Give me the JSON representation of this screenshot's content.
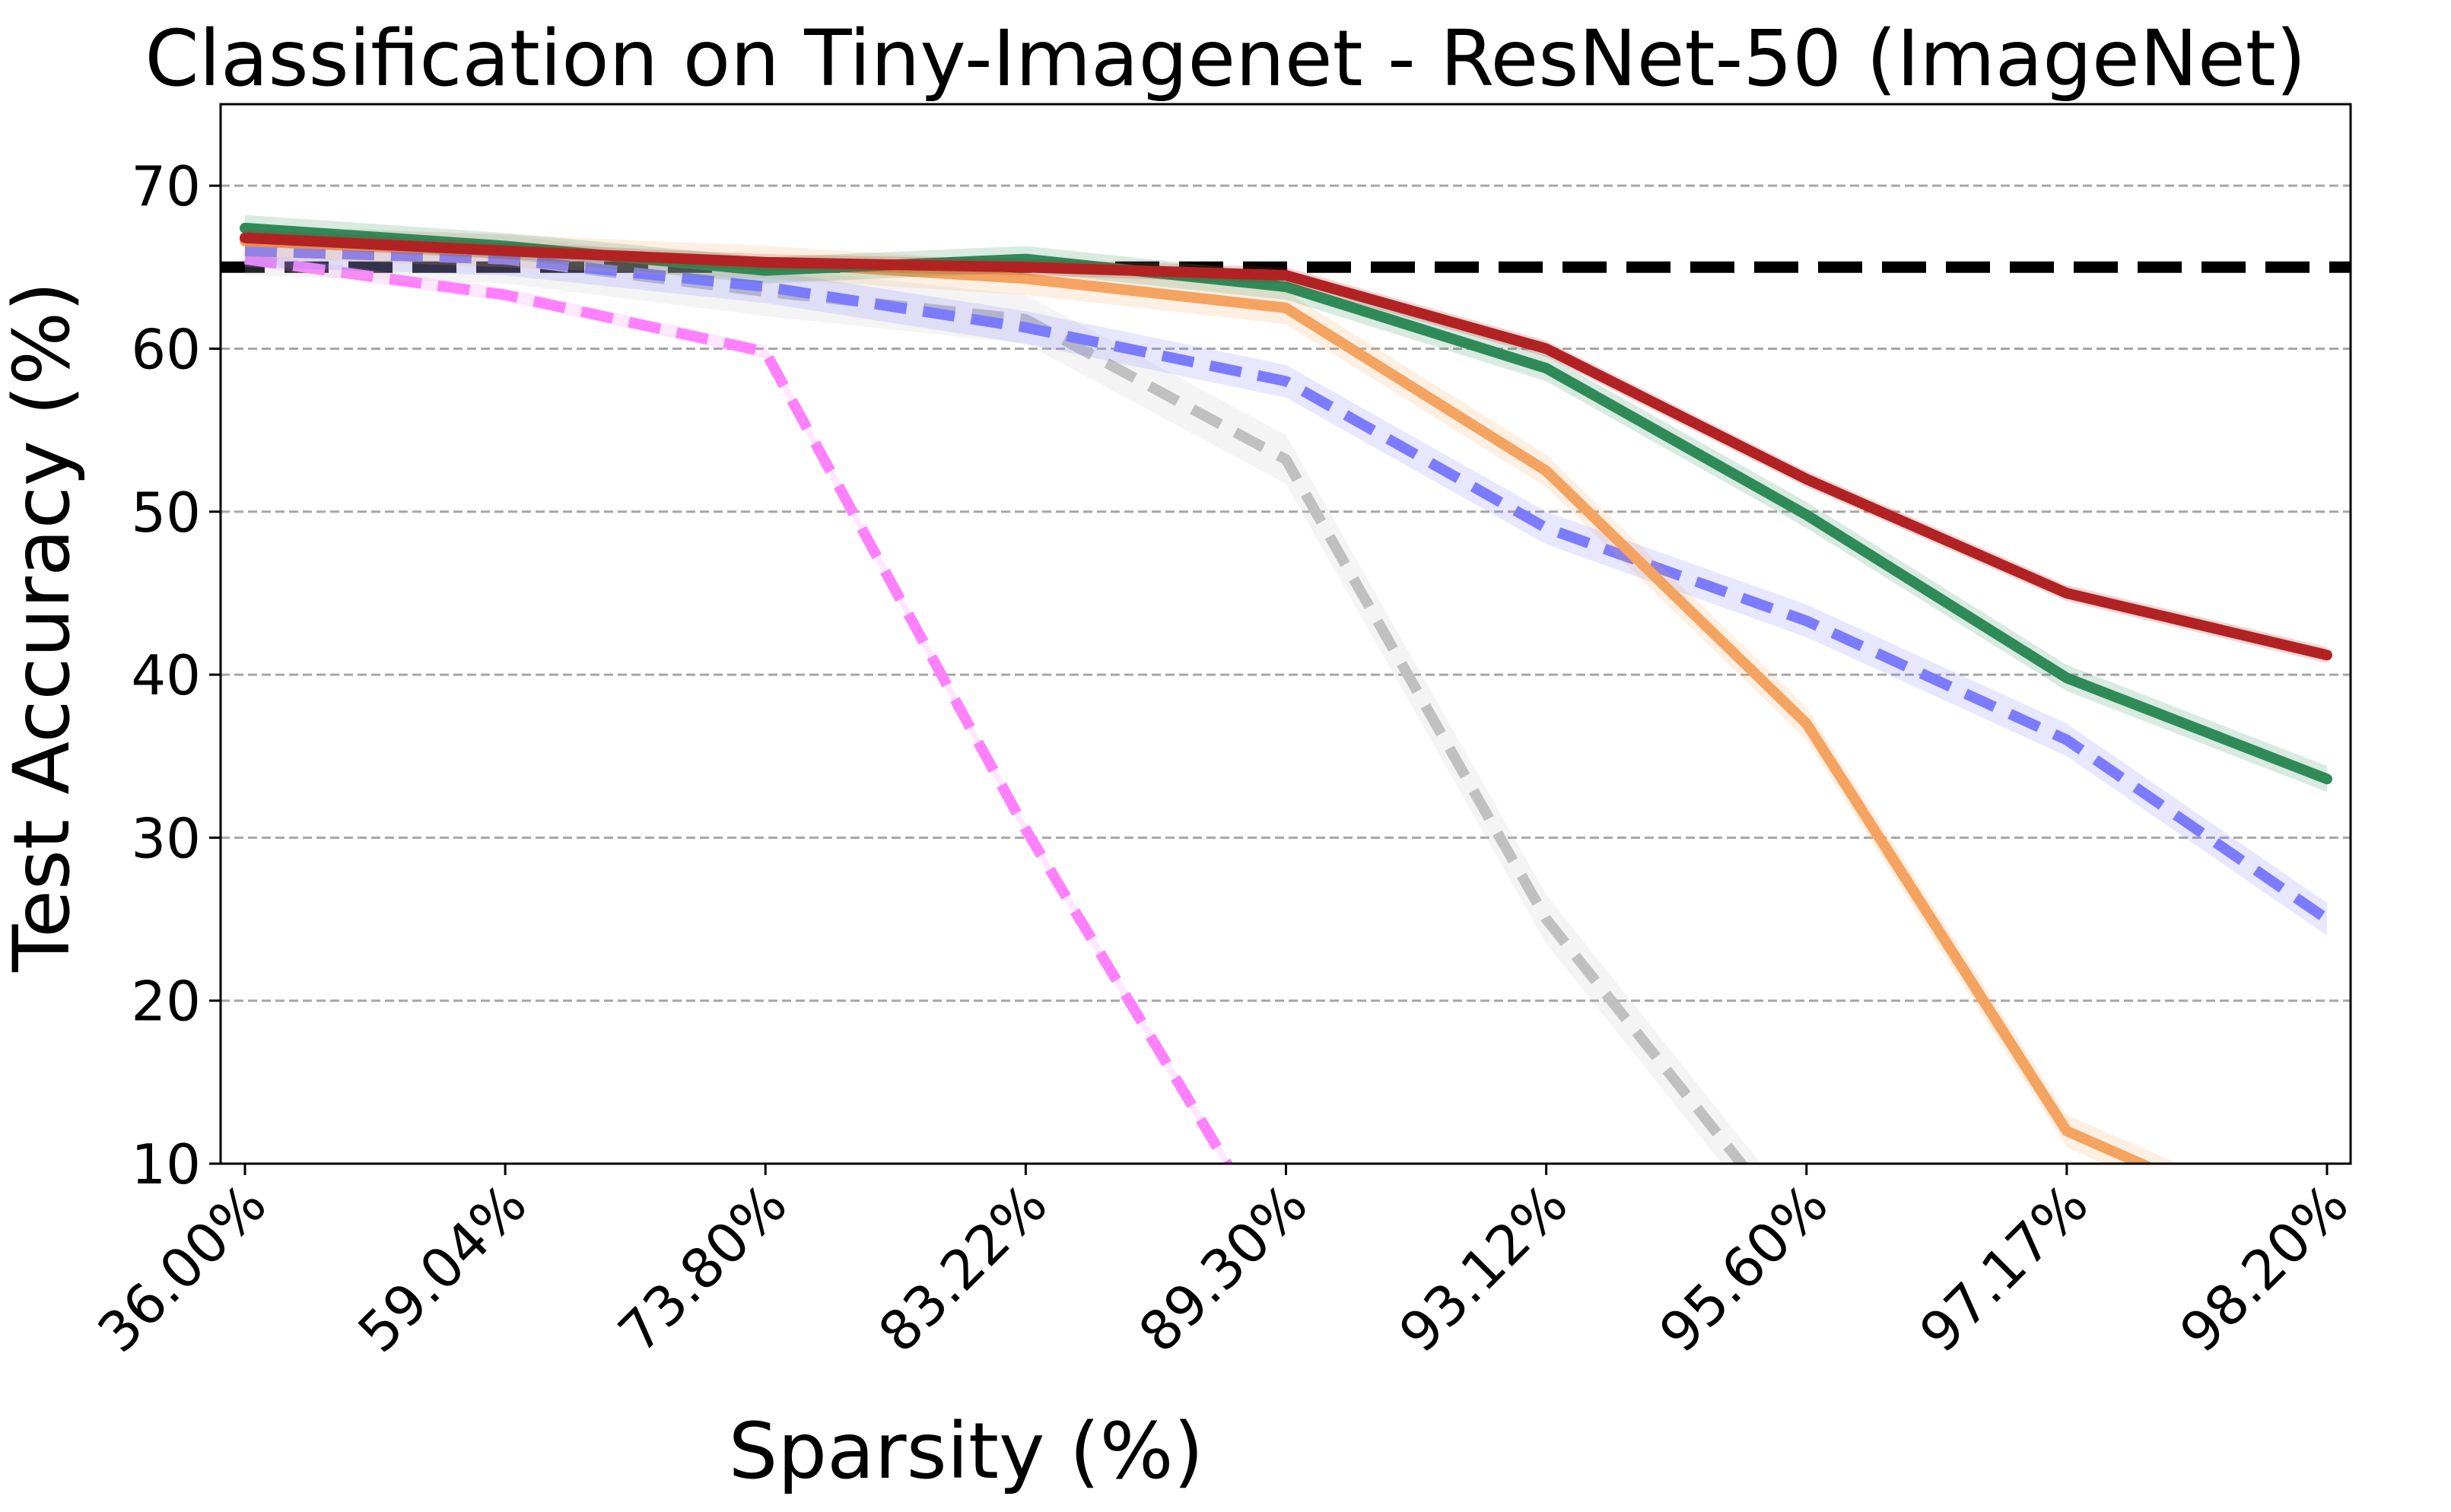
{
  "chart_data": {
    "type": "line",
    "title": "Classification on Tiny-Imagenet - ResNet-50 (ImageNet)",
    "xlabel": "Sparsity (%)",
    "ylabel": "Test Accuracy (%)",
    "categories": [
      "36.00%",
      "59.04%",
      "73.80%",
      "83.22%",
      "89.30%",
      "93.12%",
      "95.60%",
      "97.17%",
      "98.20%"
    ],
    "ylim": [
      10,
      75
    ],
    "yticks": [
      10,
      20,
      30,
      40,
      50,
      60,
      70
    ],
    "grid": "horizontal dashed",
    "reference_line": {
      "value": 65,
      "color": "#000000",
      "style": "dashed"
    },
    "series": [
      {
        "color": "#ff80ff",
        "style": "dashed",
        "values": [
          65.5,
          63.3,
          59.8,
          30.5,
          4.0,
          null,
          null,
          null,
          null
        ],
        "band": 0.4
      },
      {
        "color": "#c0c0c0",
        "style": "dashed",
        "values": [
          66.0,
          65.5,
          63.5,
          61.8,
          53.2,
          25.0,
          5.0,
          null,
          null
        ],
        "band": 1.5
      },
      {
        "color": "#7b7bff",
        "style": "dashed",
        "values": [
          66.0,
          65.5,
          63.8,
          61.3,
          58.0,
          49.0,
          43.3,
          36.0,
          25.0
        ],
        "band": 1.0
      },
      {
        "color": "#f4a460",
        "style": "solid",
        "values": [
          66.6,
          66.0,
          65.3,
          64.3,
          62.5,
          52.5,
          37.0,
          12.0,
          5.0
        ],
        "band": 1.0
      },
      {
        "color": "#2e8b57",
        "style": "solid",
        "values": [
          67.4,
          66.3,
          64.8,
          65.5,
          63.8,
          58.8,
          49.8,
          39.8,
          33.6
        ],
        "band": 0.8
      },
      {
        "color": "#b22222",
        "style": "solid",
        "values": [
          66.8,
          66.0,
          65.3,
          65.0,
          64.5,
          60.0,
          52.0,
          45.0,
          41.2
        ],
        "band": 0.5
      }
    ]
  }
}
